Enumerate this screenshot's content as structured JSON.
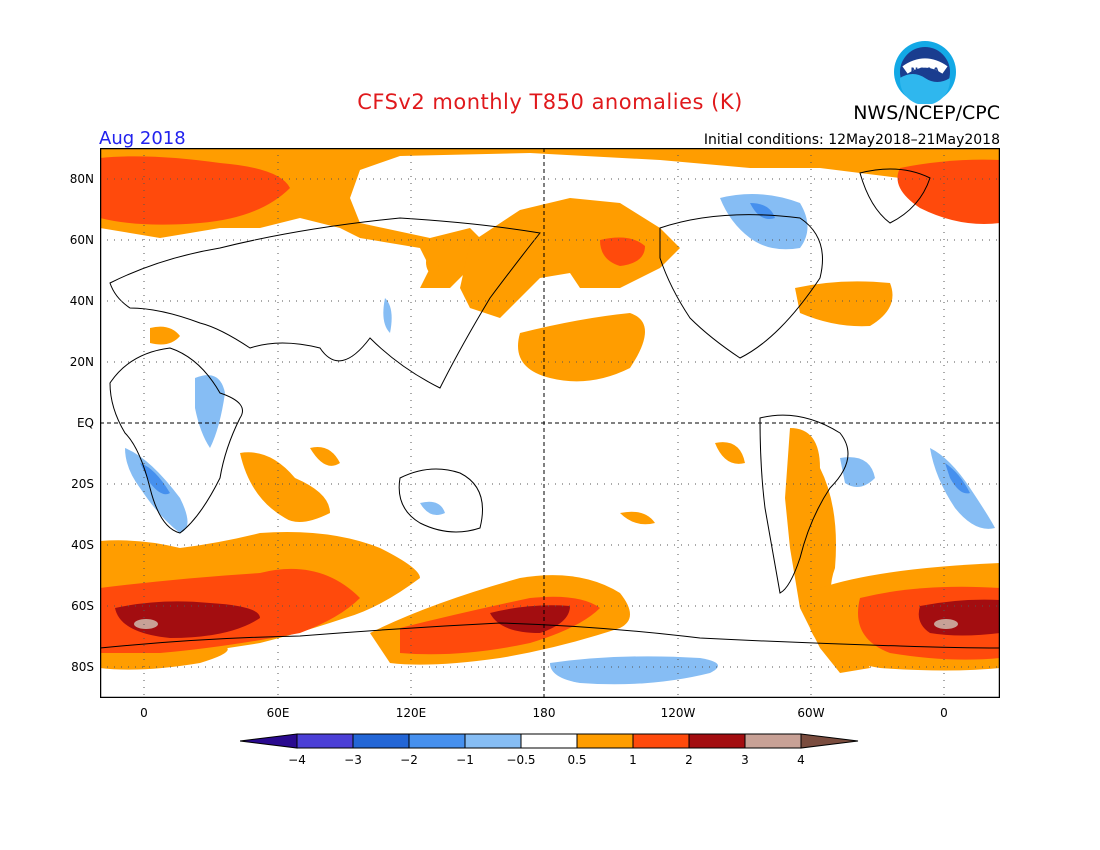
{
  "header": {
    "title": "CFSv2 monthly T850 anomalies (K)",
    "organization": "NWS/NCEP/CPC",
    "logo_text": "NOAA",
    "valid_month": "Aug 2018",
    "initial_conditions": "Initial conditions: 12May2018–21May2018"
  },
  "map": {
    "projection": "cylindrical equidistant",
    "lon_range": [
      "0",
      "360 (wraps)"
    ],
    "lat_labels": [
      "80N",
      "60N",
      "40N",
      "20N",
      "EQ",
      "20S",
      "40S",
      "60S",
      "80S"
    ],
    "lon_labels": [
      "0",
      "60E",
      "120E",
      "180",
      "120W",
      "60W",
      "0"
    ],
    "grid": "dotted every 20° lat / 60° lon, dashed equator and dateline"
  },
  "colorbar": {
    "tick_labels": [
      "−4",
      "−3",
      "−2",
      "−1",
      "−0.5",
      "0.5",
      "1",
      "2",
      "3",
      "4"
    ],
    "colors": [
      "#2a0a8f",
      "#4b3fd6",
      "#2366d6",
      "#4690ee",
      "#86bdf4",
      "#ffffff",
      "#ff9d00",
      "#ff4a0c",
      "#a30d10",
      "#c8a196",
      "#7a4c3e"
    ]
  },
  "chart_data": {
    "type": "heatmap",
    "variable": "850 hPa temperature anomaly",
    "units": "K",
    "levels": [
      -4,
      -3,
      -2,
      -1,
      -0.5,
      0.5,
      1,
      2,
      3,
      4
    ]
  }
}
